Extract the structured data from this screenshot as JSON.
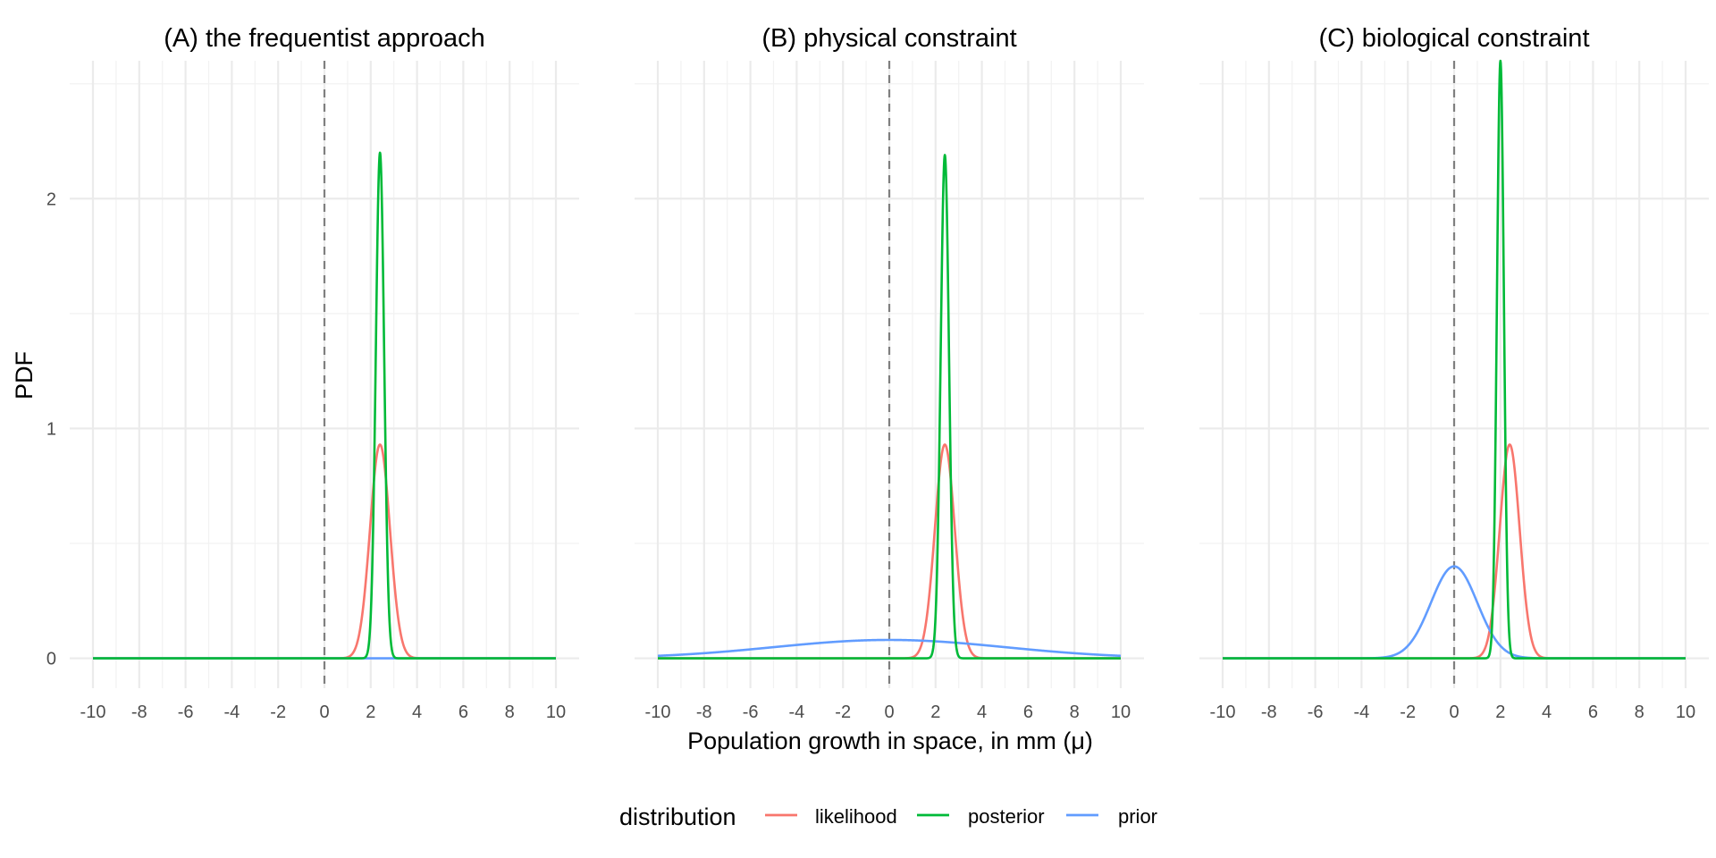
{
  "figure": {
    "ylabel": "PDF",
    "xlabel": "Population growth in space, in mm (μ)",
    "legend_title": "distribution",
    "legend_placement": "bottom",
    "vline_at": 0,
    "colors": {
      "likelihood": "#F8766D",
      "posterior": "#00BA38",
      "prior": "#619CFF"
    }
  },
  "chart_data": [
    {
      "type": "line",
      "title": "(A) the frequentist approach",
      "xlabel": "Population growth in space, in mm (μ)",
      "ylabel": "PDF",
      "xlim": [
        -10,
        10
      ],
      "ylim": [
        0,
        2.6
      ],
      "x_ticks": [
        "-10",
        "-8",
        "-6",
        "-4",
        "-2",
        "0",
        "2",
        "4",
        "6",
        "8",
        "10"
      ],
      "y_ticks": [
        "0",
        "1",
        "2"
      ],
      "grid": true,
      "series": [
        {
          "name": "likelihood",
          "dist": "normal",
          "mean": 2.4,
          "sd": 0.43,
          "peak": 0.93
        },
        {
          "name": "posterior",
          "dist": "normal",
          "mean": 2.4,
          "sd": 0.18,
          "peak": 2.2
        },
        {
          "name": "prior",
          "dist": "flat",
          "value": 0
        }
      ]
    },
    {
      "type": "line",
      "title": "(B) physical constraint",
      "xlabel": "Population growth in space, in mm (μ)",
      "ylabel": "PDF",
      "xlim": [
        -10,
        10
      ],
      "ylim": [
        0,
        2.6
      ],
      "x_ticks": [
        "-10",
        "-8",
        "-6",
        "-4",
        "-2",
        "0",
        "2",
        "4",
        "6",
        "8",
        "10"
      ],
      "y_ticks": [
        "0",
        "1",
        "2"
      ],
      "grid": true,
      "series": [
        {
          "name": "likelihood",
          "dist": "normal",
          "mean": 2.4,
          "sd": 0.43,
          "peak": 0.93
        },
        {
          "name": "posterior",
          "dist": "normal",
          "mean": 2.4,
          "sd": 0.18,
          "peak": 2.19
        },
        {
          "name": "prior",
          "dist": "normal",
          "mean": 0,
          "sd": 5,
          "peak": 0.08
        }
      ]
    },
    {
      "type": "line",
      "title": "(C) biological constraint",
      "xlabel": "Population growth in space, in mm (μ)",
      "ylabel": "PDF",
      "xlim": [
        -10,
        10
      ],
      "ylim": [
        0,
        2.6
      ],
      "x_ticks": [
        "-10",
        "-8",
        "-6",
        "-4",
        "-2",
        "0",
        "2",
        "4",
        "6",
        "8",
        "10"
      ],
      "y_ticks": [
        "0",
        "1",
        "2"
      ],
      "grid": true,
      "series": [
        {
          "name": "likelihood",
          "dist": "normal",
          "mean": 2.4,
          "sd": 0.43,
          "peak": 0.93
        },
        {
          "name": "posterior",
          "dist": "normal",
          "mean": 2.0,
          "sd": 0.15,
          "peak": 2.6
        },
        {
          "name": "prior",
          "dist": "normal",
          "mean": 0,
          "sd": 1,
          "peak": 0.4
        }
      ]
    }
  ],
  "legend": {
    "title": "distribution",
    "items": [
      {
        "label": "likelihood",
        "color": "#F8766D"
      },
      {
        "label": "posterior",
        "color": "#00BA38"
      },
      {
        "label": "prior",
        "color": "#619CFF"
      }
    ]
  }
}
